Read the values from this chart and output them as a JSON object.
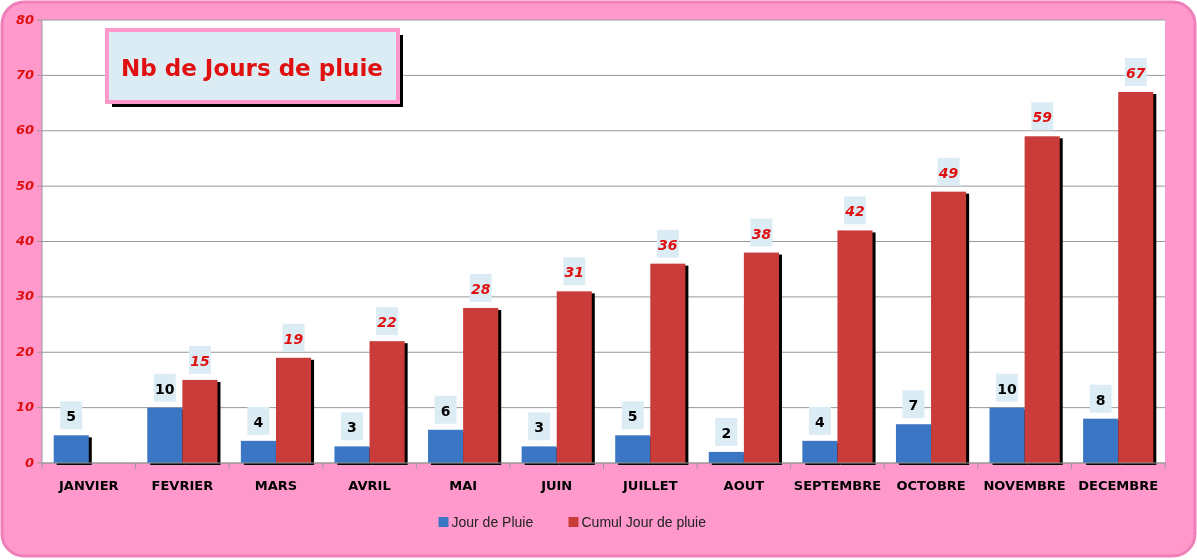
{
  "chart_data": {
    "type": "bar",
    "title": "Nb de Jours de pluie",
    "categories": [
      "JANVIER",
      "FEVRIER",
      "MARS",
      "AVRIL",
      "MAI",
      "JUIN",
      "JUILLET",
      "AOUT",
      "SEPTEMBRE",
      "OCTOBRE",
      "NOVEMBRE",
      "DECEMBRE"
    ],
    "series": [
      {
        "name": "Jour de Pluie",
        "color": "#3b76c4",
        "values": [
          5,
          10,
          4,
          3,
          6,
          3,
          5,
          2,
          4,
          7,
          10,
          8
        ]
      },
      {
        "name": "Cumul Jour de pluie",
        "color": "#c93c3a",
        "values": [
          null,
          15,
          19,
          22,
          28,
          31,
          36,
          38,
          42,
          49,
          59,
          67
        ]
      }
    ],
    "ylim": [
      0,
      80
    ],
    "yticks": [
      0,
      10,
      20,
      30,
      40,
      50,
      60,
      70,
      80
    ],
    "grid": "y",
    "legend": "bottom",
    "data_labels": true
  }
}
